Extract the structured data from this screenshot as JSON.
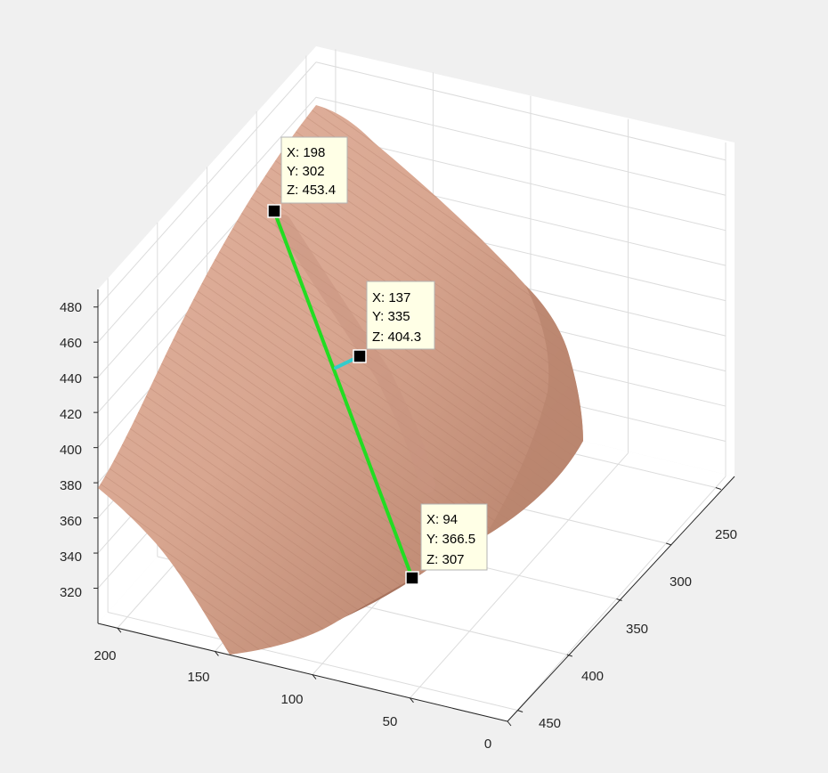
{
  "colors": {
    "figure_bg": "#f0f0f0",
    "axes_bg": "#ffffff",
    "grid": "#dcdcdc",
    "axis_line": "#262626",
    "surface": "#d7a590",
    "surface_shadow": "#9c6c59",
    "path_line": "#22dd22",
    "normal_line": "#33cccc",
    "marker": "#000000",
    "tip_bg": "#ffffe6"
  },
  "chart_data": {
    "type": "surface3d",
    "axes": {
      "x": {
        "range": [
          0,
          210
        ],
        "ticks": [
          "200",
          "150",
          "100",
          "50",
          "0"
        ]
      },
      "y": {
        "range": [
          240,
          460
        ],
        "ticks": [
          "250",
          "300",
          "350",
          "400",
          "450"
        ]
      },
      "z": {
        "range": [
          300,
          490
        ],
        "ticks": [
          "480",
          "460",
          "440",
          "420",
          "400",
          "380",
          "360",
          "340",
          "320"
        ]
      }
    },
    "grid": true,
    "datatips": [
      {
        "x": "198",
        "y": "302",
        "z": "453.4"
      },
      {
        "x": "137",
        "y": "335",
        "z": "404.3"
      },
      {
        "x": "94",
        "y": "366.5",
        "z": "307"
      }
    ],
    "segments": [
      {
        "from": [
          198,
          302,
          453.4
        ],
        "to": [
          94,
          366.5,
          307
        ],
        "color": "green"
      },
      {
        "from": [
          137,
          335,
          404.3
        ],
        "to": [
          152,
          333,
          424
        ],
        "color": "cyan"
      }
    ]
  }
}
